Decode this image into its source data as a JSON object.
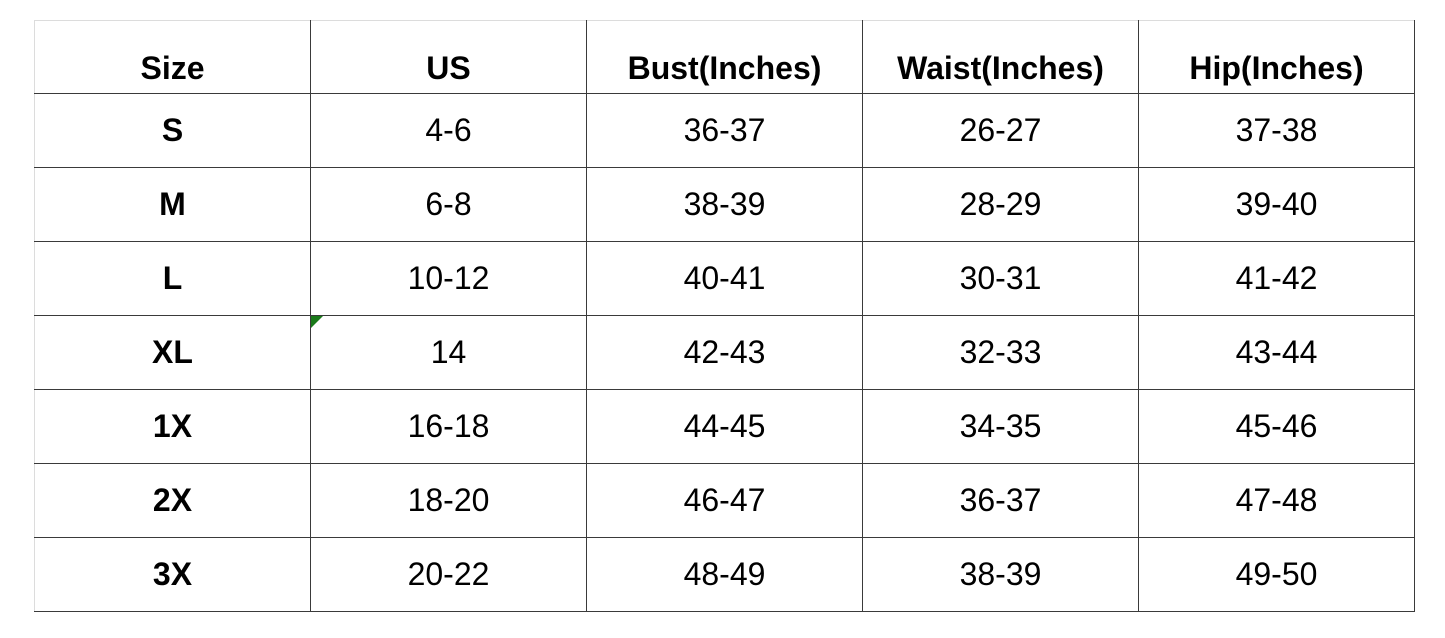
{
  "table": {
    "headers": [
      "Size",
      "US",
      "Bust(Inches)",
      "Waist(Inches)",
      "Hip(Inches)"
    ],
    "rows": [
      [
        "S",
        "4-6",
        "36-37",
        "26-27",
        "37-38"
      ],
      [
        "M",
        "6-8",
        "38-39",
        "28-29",
        "39-40"
      ],
      [
        "L",
        "10-12",
        "40-41",
        "30-31",
        "41-42"
      ],
      [
        "XL",
        "14",
        "42-43",
        "32-33",
        "43-44"
      ],
      [
        "1X",
        "16-18",
        "44-45",
        "34-35",
        "45-46"
      ],
      [
        "2X",
        "18-20",
        "46-47",
        "36-37",
        "47-48"
      ],
      [
        "3X",
        "20-22",
        "48-49",
        "38-39",
        "49-50"
      ]
    ]
  },
  "colors": {
    "cell_marker": "#1a7a1a"
  }
}
